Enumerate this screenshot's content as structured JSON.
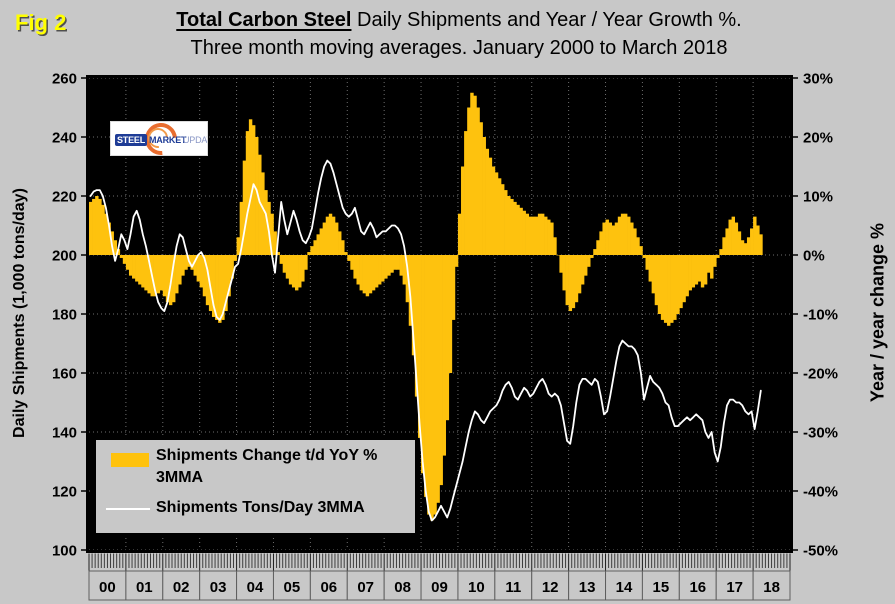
{
  "figure_label": "Fig 2",
  "title": {
    "bold": "Total Carbon Steel",
    "rest": " Daily Shipments and Year / Year Growth %.",
    "line2": "Three month moving averages. January 2000 to March 2018"
  },
  "left_axis": {
    "label": "Daily Shipments (1,000 tons/day)",
    "ticks": [
      "260",
      "240",
      "220",
      "200",
      "180",
      "160",
      "140",
      "120",
      "100"
    ],
    "min": 100,
    "max": 260
  },
  "right_axis": {
    "label": "Year / year change %",
    "ticks": [
      "30%",
      "20%",
      "10%",
      "0%",
      "-10%",
      "-20%",
      "-30%",
      "-40%",
      "-50%"
    ],
    "min": -50,
    "max": 30
  },
  "x_axis": {
    "year_labels": [
      "00",
      "01",
      "02",
      "03",
      "04",
      "05",
      "06",
      "07",
      "08",
      "09",
      "10",
      "11",
      "12",
      "13",
      "14",
      "15",
      "16",
      "17",
      "18"
    ]
  },
  "legend": {
    "bar_label": "Shipments Change t/d YoY %",
    "bar_label_line2": "3MMA",
    "line_label": "Shipments Tons/Day 3MMA"
  },
  "logo": {
    "word1": "STEEL",
    "word2": "MARKET",
    "word3": "UPDATE"
  },
  "colors": {
    "bar": "#fec20e",
    "line": "#ffffff",
    "plot_bg": "#000000",
    "page_bg": "#c8c8c8",
    "grid": "#6e6e6e",
    "fig_label": "#ffff00"
  },
  "chart_data": {
    "type": "combo",
    "frequency": "monthly",
    "start_month": "2000-01",
    "end_month": "2018-03",
    "x_axis_span_months": 228,
    "left_axis_range": [
      100,
      260
    ],
    "right_axis_range": [
      -50,
      30
    ],
    "grid": "dotted",
    "legend_position": "bottom-left-inside",
    "categories_years": [
      "00",
      "01",
      "02",
      "03",
      "04",
      "05",
      "06",
      "07",
      "08",
      "09",
      "10",
      "11",
      "12",
      "13",
      "14",
      "15",
      "16",
      "17",
      "18"
    ],
    "series": [
      {
        "name": "Shipments Change t/d YoY % 3MMA",
        "type": "bar",
        "axis": "right",
        "unit": "%",
        "color": "#fec20e",
        "values": [
          9,
          9.5,
          10,
          9.5,
          8.5,
          7,
          5.5,
          4,
          2.5,
          1,
          -0.5,
          -1.5,
          -2.5,
          -3.5,
          -4,
          -4.5,
          -5,
          -5.5,
          -6,
          -6.5,
          -7,
          -7,
          -6.5,
          -6,
          -7,
          -8,
          -8.5,
          -8,
          -6.5,
          -5,
          -3.5,
          -2.5,
          -2,
          -2.5,
          -3.5,
          -4.5,
          -5.5,
          -7,
          -8.5,
          -9.5,
          -10.5,
          -11,
          -11.5,
          -11,
          -9.5,
          -7,
          -4,
          -1,
          3,
          9,
          16,
          21,
          23,
          22,
          20,
          17,
          14,
          11,
          9,
          7,
          4,
          0.5,
          -1.5,
          -3,
          -4,
          -5,
          -5.5,
          -6,
          -5.5,
          -4.5,
          -2.5,
          0.5,
          1.5,
          2.5,
          3.5,
          4.5,
          5.5,
          6.5,
          7,
          6.5,
          5.5,
          4,
          2.5,
          0.5,
          -1,
          -2.5,
          -4,
          -5,
          -6,
          -6.5,
          -7,
          -6.5,
          -6,
          -5.5,
          -5,
          -4.5,
          -4,
          -3.5,
          -3,
          -2.5,
          -2.5,
          -3.5,
          -5,
          -8,
          -12,
          -17,
          -24,
          -31,
          -37,
          -41,
          -44,
          -45,
          -44,
          -42,
          -39,
          -34,
          -28,
          -20,
          -11,
          -2,
          7,
          15,
          21,
          25,
          27.5,
          27,
          25,
          22.5,
          20,
          18,
          16.5,
          15,
          14,
          13,
          12,
          11,
          10,
          9.5,
          9,
          8.5,
          8,
          7.5,
          7,
          6.5,
          6.5,
          6.5,
          7,
          7,
          6.5,
          6,
          5.5,
          3,
          0,
          -3,
          -6,
          -8.5,
          -9.5,
          -9,
          -8,
          -6.5,
          -5,
          -3.5,
          -2,
          -0.5,
          1,
          2.5,
          4,
          5.5,
          6,
          5.5,
          5,
          5.5,
          6.5,
          7,
          7,
          6.5,
          5.5,
          4.5,
          3,
          1.5,
          -0.5,
          -2.5,
          -4.5,
          -6.5,
          -8.5,
          -10,
          -11,
          -11.5,
          -12,
          -11.5,
          -11,
          -10,
          -9,
          -8,
          -7,
          -6,
          -5.5,
          -5,
          -4.5,
          -5.5,
          -5,
          -3,
          -4,
          -2,
          -0.5,
          1,
          3,
          4.5,
          6,
          6.5,
          5.5,
          4,
          2.5,
          2,
          3,
          4.5,
          6.5,
          5,
          3.5
        ]
      },
      {
        "name": "Shipments Tons/Day 3MMA",
        "type": "line",
        "axis": "left",
        "unit": "1,000 tons/day",
        "color": "#ffffff",
        "values": [
          220,
          221.5,
          222,
          222,
          220,
          216,
          210,
          203,
          198,
          202,
          207,
          205,
          202,
          207,
          213,
          215,
          212,
          207,
          203,
          198,
          193,
          188,
          184,
          182,
          181,
          184,
          190,
          197,
          203,
          207,
          206,
          202,
          198,
          196,
          198,
          200,
          201,
          199,
          195,
          189,
          183,
          179,
          178,
          180,
          184,
          188,
          192,
          196,
          197,
          202,
          208,
          214,
          219,
          224,
          222,
          218,
          216,
          214,
          208,
          200,
          194,
          206,
          218,
          212,
          207,
          211,
          215,
          212,
          208,
          205,
          204,
          206,
          209,
          215,
          221,
          226,
          230,
          232,
          231,
          228,
          224,
          220,
          216,
          214,
          213,
          214,
          216,
          212,
          208,
          207,
          209,
          211,
          209,
          206,
          207,
          208,
          208,
          209,
          210,
          210,
          209,
          207,
          203,
          196,
          186,
          172,
          158,
          143,
          130,
          120,
          113,
          110,
          111,
          113,
          115,
          113,
          111,
          114,
          118,
          122,
          126,
          130,
          135,
          140,
          144,
          147,
          146,
          144,
          143,
          145,
          147,
          148,
          149,
          151,
          154,
          156,
          157,
          155,
          152,
          151,
          153,
          155,
          154,
          152,
          153,
          155,
          157,
          158,
          156,
          153,
          152,
          153,
          152,
          149,
          143,
          137,
          136,
          142,
          150,
          156,
          158,
          158,
          157,
          156,
          158,
          157,
          152,
          146,
          147,
          152,
          158,
          164,
          169,
          171,
          170,
          169,
          169,
          168,
          166,
          160,
          151,
          155,
          159,
          157,
          156,
          155,
          153,
          150,
          149,
          145,
          142,
          142,
          143,
          144,
          145,
          144,
          145,
          146,
          145,
          144,
          140,
          138,
          140,
          133,
          130,
          135,
          143,
          149,
          151,
          151,
          150,
          150,
          149,
          147,
          146,
          147,
          141,
          147,
          154
        ]
      }
    ]
  }
}
